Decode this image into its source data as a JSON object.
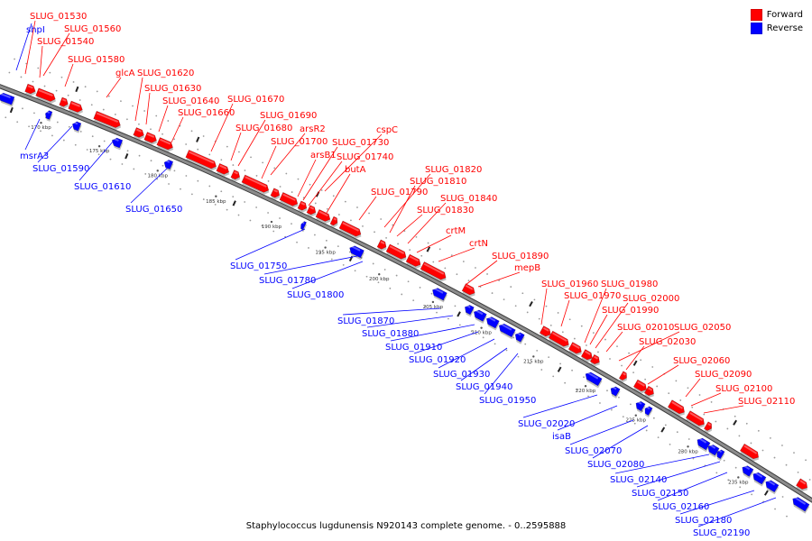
{
  "caption": "Staphylococcus lugdunensis N920143 complete genome. - 0..2595888",
  "legend": [
    {
      "label": "Forward",
      "color": "#ff0000"
    },
    {
      "label": "Reverse",
      "color": "#0000ff"
    }
  ],
  "colors": {
    "forward": "#ff0000",
    "reverse": "#0000ff",
    "backbone": "#8c8c8c"
  },
  "ticks": [
    "170 kbp",
    "175 kbp",
    "180 kbp",
    "185 kbp",
    "190 kbp",
    "195 kbp",
    "200 kbp",
    "205 kbp",
    "210 kbp",
    "215 kbp",
    "220 kbp",
    "225 kbp",
    "230 kbp",
    "235 kbp"
  ],
  "forward_labels": [
    "SLUG_01530",
    "SLUG_01560",
    "SLUG_01540",
    "SLUG_01580",
    "glcA",
    "SLUG_01620",
    "SLUG_01630",
    "SLUG_01640",
    "SLUG_01660",
    "SLUG_01670",
    "SLUG_01690",
    "SLUG_01680",
    "arsR2",
    "SLUG_01700",
    "cspC",
    "arsB1",
    "SLUG_01730",
    "SLUG_01740",
    "butA",
    "SLUG_01820",
    "SLUG_01810",
    "SLUG_01790",
    "SLUG_01840",
    "SLUG_01830",
    "crtM",
    "crtN",
    "SLUG_01890",
    "mepB",
    "SLUG_01960",
    "SLUG_01980",
    "SLUG_01970",
    "SLUG_02000",
    "SLUG_01990",
    "SLUG_02010",
    "SLUG_02050",
    "SLUG_02030",
    "SLUG_02060",
    "SLUG_02090",
    "SLUG_02100",
    "SLUG_02110"
  ],
  "reverse_labels": [
    "shpI",
    "msrA3",
    "SLUG_01590",
    "SLUG_01610",
    "SLUG_01650",
    "SLUG_01750",
    "SLUG_01780",
    "SLUG_01800",
    "SLUG_01870",
    "SLUG_01880",
    "SLUG_01910",
    "SLUG_01920",
    "SLUG_01930",
    "SLUG_01940",
    "SLUG_01950",
    "SLUG_02020",
    "isaB",
    "SLUG_02070",
    "SLUG_02080",
    "SLUG_02140",
    "SLUG_02150",
    "SLUG_02160",
    "SLUG_02180",
    "SLUG_02190"
  ]
}
